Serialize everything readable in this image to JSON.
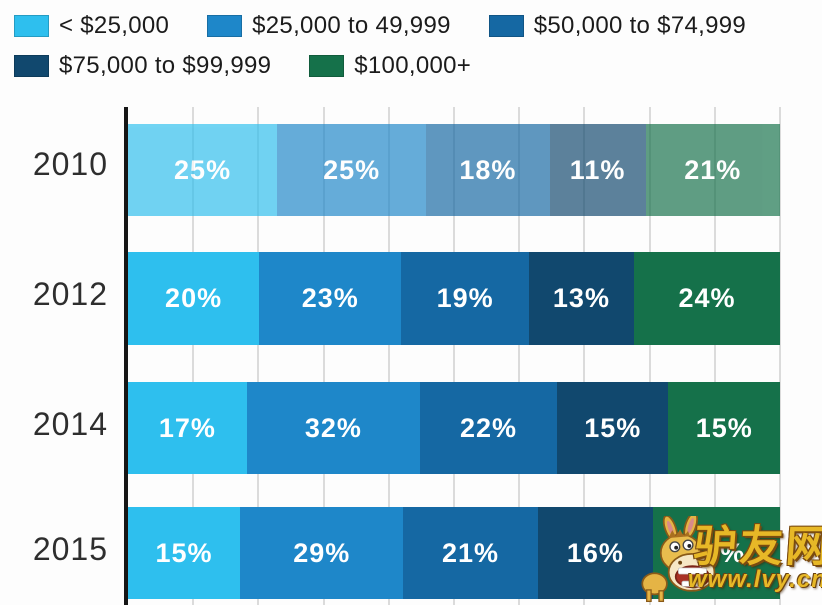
{
  "chart_data": {
    "type": "bar",
    "orientation": "horizontal",
    "stacked": true,
    "legend_position": "top",
    "categories": [
      "2010",
      "2012",
      "2014",
      "2015"
    ],
    "series": [
      {
        "name": "< $25,000",
        "color": "#2ebfee",
        "values": [
          25,
          20,
          17,
          15
        ]
      },
      {
        "name": "$25,000 to 49,999",
        "color": "#1e87c9",
        "values": [
          25,
          23,
          32,
          29
        ]
      },
      {
        "name": "$50,000 to $74,999",
        "color": "#1568a3",
        "values": [
          18,
          19,
          22,
          21
        ]
      },
      {
        "name": "$75,000 to $99,999",
        "color": "#11486e",
        "values": [
          11,
          13,
          15,
          16
        ]
      },
      {
        "name": "$100,000+",
        "color": "#15714a",
        "values": [
          21,
          24,
          15,
          19
        ]
      }
    ],
    "value_suffix": "%",
    "xlim": [
      0,
      100
    ],
    "gridline_interval_percent": 10,
    "grid": true,
    "row_opacity": [
      0.68,
      1,
      1,
      1
    ],
    "axis_color": "#161616",
    "gridline_color": "#dbdbdb"
  },
  "watermark": {
    "site_name": "驴友网",
    "url": "www.lvy.cn"
  }
}
